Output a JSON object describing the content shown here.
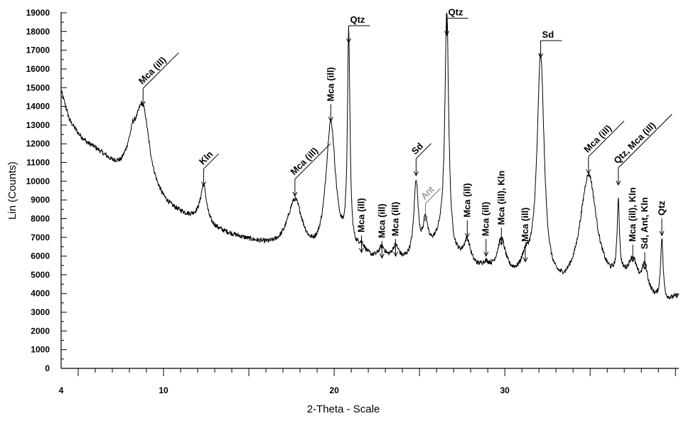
{
  "chart_data": {
    "type": "line",
    "xlabel": "2-Theta - Scale",
    "ylabel": "Lin (Counts)",
    "xlim": [
      4,
      40.2
    ],
    "ylim": [
      0,
      19000
    ],
    "x_ticks": [
      4,
      10,
      20,
      30
    ],
    "y_ticks": [
      0,
      1000,
      2000,
      3000,
      4000,
      5000,
      6000,
      7000,
      8000,
      9000,
      10000,
      11000,
      12000,
      13000,
      14000,
      15000,
      16000,
      17000,
      18000,
      19000
    ],
    "grid": false,
    "background": [
      [
        4.0,
        14800
      ],
      [
        4.5,
        13200
      ],
      [
        5.0,
        12500
      ],
      [
        5.5,
        12000
      ],
      [
        6.0,
        11700
      ],
      [
        6.5,
        11300
      ],
      [
        7.0,
        10900
      ],
      [
        7.5,
        10700
      ],
      [
        7.8,
        11000
      ],
      [
        8.2,
        11700
      ],
      [
        8.8,
        9800
      ],
      [
        9.3,
        9300
      ],
      [
        10.0,
        8700
      ],
      [
        10.5,
        8400
      ],
      [
        11.0,
        8200
      ],
      [
        11.5,
        8000
      ],
      [
        12.0,
        7900
      ],
      [
        12.6,
        7500
      ],
      [
        13.5,
        7200
      ],
      [
        14.5,
        6900
      ],
      [
        15.5,
        6600
      ],
      [
        16.5,
        6300
      ],
      [
        17.2,
        6100
      ],
      [
        18.0,
        5900
      ],
      [
        18.5,
        5700
      ],
      [
        19.0,
        5600
      ],
      [
        20.0,
        5650
      ],
      [
        21.0,
        5700
      ],
      [
        22.0,
        5600
      ],
      [
        23.0,
        5500
      ],
      [
        24.0,
        5500
      ],
      [
        25.0,
        5900
      ],
      [
        25.8,
        6400
      ],
      [
        26.3,
        6800
      ],
      [
        27.0,
        5800
      ],
      [
        28.0,
        5200
      ],
      [
        29.0,
        4900
      ],
      [
        30.0,
        4700
      ],
      [
        31.0,
        4500
      ],
      [
        31.8,
        4600
      ],
      [
        32.5,
        4100
      ],
      [
        33.5,
        3900
      ],
      [
        34.1,
        4100
      ],
      [
        35.0,
        4700
      ],
      [
        35.5,
        4300
      ],
      [
        36.0,
        4200
      ],
      [
        37.0,
        4400
      ],
      [
        37.8,
        4000
      ],
      [
        38.3,
        3800
      ],
      [
        39.0,
        3450
      ],
      [
        39.5,
        3450
      ],
      [
        40.2,
        3800
      ]
    ],
    "peaks": [
      {
        "pos": 8.8,
        "height": 14000,
        "width": 0.45
      },
      {
        "pos": 12.35,
        "height": 9700,
        "width": 0.22
      },
      {
        "pos": 17.7,
        "height": 8800,
        "width": 0.55
      },
      {
        "pos": 19.8,
        "height": 12900,
        "width": 0.35
      },
      {
        "pos": 20.85,
        "height": 17200,
        "width": 0.09
      },
      {
        "pos": 21.6,
        "height": 6200,
        "width": 0.3
      },
      {
        "pos": 22.8,
        "height": 6200,
        "width": 0.25
      },
      {
        "pos": 23.6,
        "height": 6300,
        "width": 0.25
      },
      {
        "pos": 24.8,
        "height": 9800,
        "width": 0.15
      },
      {
        "pos": 25.35,
        "height": 7700,
        "width": 0.15
      },
      {
        "pos": 26.6,
        "height": 19000,
        "width": 0.13
      },
      {
        "pos": 27.8,
        "height": 6600,
        "width": 0.25
      },
      {
        "pos": 28.9,
        "height": 5300,
        "width": 0.3
      },
      {
        "pos": 29.8,
        "height": 6600,
        "width": 0.3
      },
      {
        "pos": 31.2,
        "height": 5400,
        "width": 0.3
      },
      {
        "pos": 32.1,
        "height": 16400,
        "width": 0.25
      },
      {
        "pos": 34.9,
        "height": 10200,
        "width": 0.6
      },
      {
        "pos": 36.65,
        "height": 8300,
        "width": 0.08
      },
      {
        "pos": 37.5,
        "height": 5500,
        "width": 0.3
      },
      {
        "pos": 38.2,
        "height": 5200,
        "width": 0.2
      },
      {
        "pos": 39.2,
        "height": 6700,
        "width": 0.09
      }
    ],
    "annotations": [
      {
        "label": "Mca (ill)",
        "pos": 8.8,
        "arrow_y": 14050,
        "orient": "slant",
        "style": "bold"
      },
      {
        "label": "Kln",
        "pos": 12.35,
        "arrow_y": 9750,
        "orient": "slant",
        "style": "bold"
      },
      {
        "label": "Mca (ill)",
        "pos": 17.7,
        "arrow_y": 9200,
        "orient": "slant",
        "style": "bold"
      },
      {
        "label": "Mca (ill)",
        "pos": 19.8,
        "arrow_y": 13200,
        "orient": "vertical",
        "style": "bold"
      },
      {
        "label": "Qtz",
        "pos": 20.85,
        "arrow_y": 17400,
        "orient": "horizontal",
        "style": "bold"
      },
      {
        "label": "Mca (ill)",
        "pos": 21.6,
        "arrow_y": 6200,
        "orient": "vertical",
        "style": "bold"
      },
      {
        "label": "Mca (ill)",
        "pos": 22.8,
        "arrow_y": 5900,
        "orient": "vertical",
        "style": "bold"
      },
      {
        "label": "Mca (ill)",
        "pos": 23.6,
        "arrow_y": 6000,
        "orient": "vertical",
        "style": "bold"
      },
      {
        "label": "Sd",
        "pos": 24.8,
        "arrow_y": 10300,
        "orient": "slant",
        "style": "normal"
      },
      {
        "label": "Ant",
        "pos": 25.35,
        "arrow_y": 7900,
        "orient": "slant",
        "style": "light"
      },
      {
        "label": "Qtz",
        "pos": 26.6,
        "arrow_y": 17800,
        "orient": "horizontal",
        "style": "bold"
      },
      {
        "label": "Mca (ill)",
        "pos": 27.8,
        "arrow_y": 7000,
        "orient": "vertical",
        "style": "bold"
      },
      {
        "label": "Mca (ill)",
        "pos": 28.9,
        "arrow_y": 6000,
        "orient": "vertical",
        "style": "bold"
      },
      {
        "label": "Mca (ill), Kln",
        "pos": 29.8,
        "arrow_y": 6600,
        "orient": "vertical",
        "style": "bold"
      },
      {
        "label": "Mca (ill)",
        "pos": 31.2,
        "arrow_y": 5700,
        "orient": "vertical",
        "style": "bold"
      },
      {
        "label": "Sd",
        "pos": 32.1,
        "arrow_y": 16600,
        "orient": "horizontal",
        "style": "normal"
      },
      {
        "label": "Mca (ill)",
        "pos": 34.9,
        "arrow_y": 10400,
        "orient": "slant",
        "style": "bold"
      },
      {
        "label": "Qtz, Mca (ill)",
        "pos": 36.65,
        "arrow_y": 9800,
        "orient": "slant",
        "style": "bold"
      },
      {
        "label": "Mca (ill), Kln",
        "pos": 37.5,
        "arrow_y": 5700,
        "orient": "vertical",
        "style": "bold"
      },
      {
        "label": "Sd, Ant, Kln",
        "pos": 38.2,
        "arrow_y": 5300,
        "orient": "vertical",
        "style": "bold"
      },
      {
        "label": "Qtz",
        "pos": 39.2,
        "arrow_y": 7100,
        "orient": "vertical",
        "style": "bold"
      }
    ]
  }
}
